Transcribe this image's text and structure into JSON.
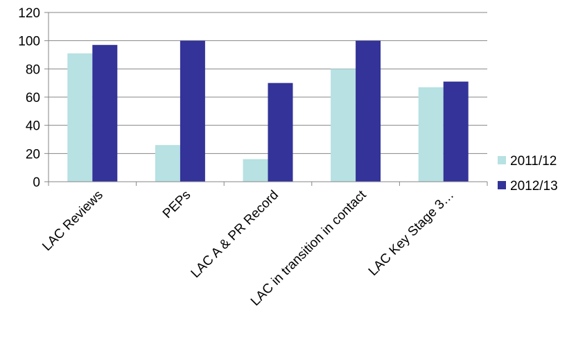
{
  "chart_data": {
    "type": "bar",
    "categories": [
      "LAC Reviews",
      "PEPs",
      "LAC A & PR Record",
      "LAC in transition in contact",
      "LAC Key Stage 3…"
    ],
    "series": [
      {
        "name": "2011/12",
        "values": [
          91,
          26,
          16,
          80,
          67
        ],
        "color": "#b7e1e3"
      },
      {
        "name": "2012/13",
        "values": [
          97,
          100,
          70,
          100,
          71
        ],
        "color": "#333399"
      }
    ],
    "ylim": [
      0,
      120
    ],
    "yticks": [
      0,
      20,
      40,
      60,
      80,
      100,
      120
    ],
    "ytick_labels": [
      "0",
      "20",
      "40",
      "60",
      "80",
      "100",
      "120"
    ],
    "grid": true,
    "legend_position": "right",
    "title": "",
    "xlabel": "",
    "ylabel": ""
  }
}
